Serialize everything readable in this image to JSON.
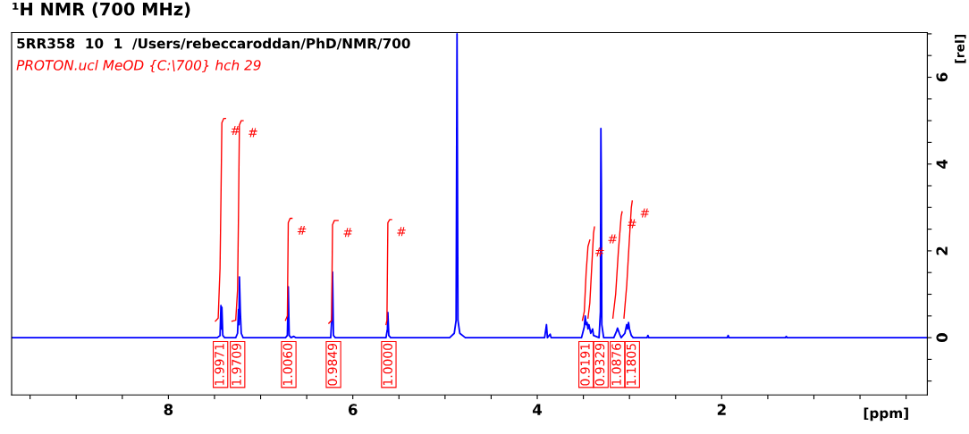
{
  "chart_data": {
    "type": "line",
    "title": "¹H NMR (700 MHz)",
    "xlabel": "[ppm]",
    "ylabel": "[rel]",
    "xlim": [
      9.7,
      -0.23
    ],
    "ylim": [
      -1.32,
      7.03
    ],
    "xticks": [
      {
        "value": 9.5,
        "label": null
      },
      {
        "value": 9,
        "label": null
      },
      {
        "value": 8.5,
        "label": null
      },
      8,
      {
        "value": 7.5,
        "label": null
      },
      {
        "value": 7,
        "label": null
      },
      {
        "value": 6.5,
        "label": null
      },
      6,
      {
        "value": 5.5,
        "label": null
      },
      {
        "value": 5,
        "label": null
      },
      {
        "value": 4.5,
        "label": null
      },
      4,
      {
        "value": 3.5,
        "label": null
      },
      {
        "value": 3,
        "label": null
      },
      {
        "value": 2.5,
        "label": null
      },
      2,
      {
        "value": 1.5,
        "label": null
      },
      {
        "value": 1,
        "label": null
      },
      {
        "value": 0.5,
        "label": null
      },
      {
        "value": 0,
        "label": null
      }
    ],
    "yticks": [
      {
        "value": -1,
        "label": null
      },
      {
        "value": -0.5,
        "label": null
      },
      0,
      {
        "value": 0.5,
        "label": null
      },
      {
        "value": 1,
        "label": null
      },
      {
        "value": 1.5,
        "label": null
      },
      2,
      {
        "value": 2.5,
        "label": null
      },
      {
        "value": 3,
        "label": null
      },
      {
        "value": 3.5,
        "label": null
      },
      4,
      {
        "value": 4.5,
        "label": null
      },
      {
        "value": 5,
        "label": null
      },
      {
        "value": 5.5,
        "label": null
      },
      6,
      {
        "value": 6.5,
        "label": null
      },
      {
        "value": 7,
        "label": null
      }
    ],
    "series": [
      {
        "color": "#0000ff",
        "x": [
          9.7,
          7.47,
          7.44,
          7.43,
          7.425,
          7.42,
          7.41,
          7.39,
          7.27,
          7.25,
          7.24,
          7.235,
          7.23,
          7.22,
          7.21,
          7.19,
          6.73,
          6.71,
          6.705,
          6.7,
          6.69,
          6.67,
          6.64,
          6.62,
          6.24,
          6.225,
          6.22,
          6.21,
          6.19,
          5.64,
          5.625,
          5.62,
          5.61,
          5.59,
          4.95,
          4.9,
          4.88,
          4.87,
          4.86,
          4.84,
          4.78,
          3.92,
          3.9,
          3.89,
          3.86,
          3.85,
          3.52,
          3.49,
          3.48,
          3.47,
          3.46,
          3.45,
          3.44,
          3.42,
          3.4,
          3.39,
          3.33,
          3.315,
          3.31,
          3.305,
          3.3,
          3.28,
          3.17,
          3.14,
          3.13,
          3.11,
          3.09,
          3.05,
          3.03,
          3.02,
          3.01,
          3.0,
          2.98,
          2.96,
          2.81,
          2.8,
          2.79,
          1.94,
          1.93,
          1.92,
          1.31,
          1.3,
          1.29,
          -0.23
        ],
        "values": [
          0,
          0,
          0.05,
          0.74,
          0.2,
          0.7,
          0.05,
          0,
          0,
          0.1,
          0.65,
          0.3,
          1.4,
          0.6,
          0.1,
          0,
          0,
          0.05,
          0.58,
          1.17,
          0.05,
          0,
          0.03,
          0,
          0,
          0.55,
          1.51,
          0.05,
          0,
          0,
          0.2,
          0.58,
          0.05,
          0,
          0,
          0.1,
          0.4,
          7.0,
          0.4,
          0.1,
          0,
          0,
          0.3,
          0,
          0.08,
          0,
          0,
          0.25,
          0.5,
          0.3,
          0.35,
          0.2,
          0.3,
          0.1,
          0.2,
          0.05,
          0,
          0.6,
          4.82,
          3.45,
          0.3,
          0,
          0,
          0.15,
          0.22,
          0.1,
          0,
          0.1,
          0.3,
          0.2,
          0.35,
          0.2,
          0.05,
          0,
          0,
          0.05,
          0,
          0,
          0.05,
          0,
          0,
          0.03,
          0,
          0
        ]
      },
      {
        "color": "#ff0000",
        "x": [
          7.49,
          7.46,
          7.44,
          7.43,
          7.42,
          7.4,
          7.38
        ],
        "values": [
          0.38,
          0.45,
          1.6,
          3.2,
          4.95,
          5.05,
          5.05
        ]
      },
      {
        "color": "#ff0000",
        "x": [
          7.31,
          7.27,
          7.25,
          7.24,
          7.23,
          7.21,
          7.19
        ],
        "values": [
          0.38,
          0.4,
          1.1,
          2.8,
          4.9,
          5.0,
          5.0
        ]
      },
      {
        "color": "#ff0000",
        "x": [
          6.73,
          6.71,
          6.7,
          6.68,
          6.66
        ],
        "values": [
          0.4,
          0.5,
          2.65,
          2.75,
          2.75
        ]
      },
      {
        "color": "#ff0000",
        "x": [
          6.26,
          6.23,
          6.22,
          6.2,
          6.16
        ],
        "values": [
          0.33,
          0.4,
          2.6,
          2.7,
          2.7
        ]
      },
      {
        "color": "#ff0000",
        "x": [
          5.64,
          5.63,
          5.62,
          5.6,
          5.58
        ],
        "values": [
          0.3,
          0.4,
          2.65,
          2.72,
          2.72
        ]
      },
      {
        "color": "#ff0000",
        "x": [
          3.51,
          3.49,
          3.47,
          3.45,
          3.43
        ],
        "values": [
          0.4,
          0.6,
          1.5,
          2.1,
          2.25
        ]
      },
      {
        "color": "#ff0000",
        "x": [
          3.45,
          3.43,
          3.41,
          3.39,
          3.38
        ],
        "values": [
          0.45,
          0.8,
          1.6,
          2.4,
          2.55
        ]
      },
      {
        "color": "#ff0000",
        "x": [
          3.18,
          3.15,
          3.12,
          3.09,
          3.08
        ],
        "values": [
          0.45,
          1.0,
          2.0,
          2.8,
          2.9
        ]
      },
      {
        "color": "#ff0000",
        "x": [
          3.06,
          3.03,
          3.0,
          2.98,
          2.97
        ],
        "values": [
          0.45,
          1.2,
          2.3,
          3.0,
          3.15
        ]
      }
    ],
    "annotations": [
      "5RR358  10  1  /Users/rebeccaroddan/PhD/NMR/700",
      "PROTON.ucl MeOD {C:\\700} hch 29",
      "1.9971",
      "1.9709",
      "1.0060",
      "0.9849",
      "1.0000",
      "0.9191",
      "0.9329",
      "1.0876",
      "1.1805",
      "#",
      "#",
      "#",
      "#",
      "#",
      "#",
      "#",
      "#",
      "#"
    ]
  }
}
